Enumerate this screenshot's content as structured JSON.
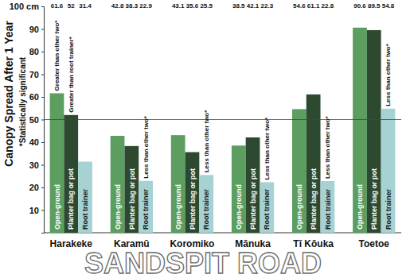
{
  "chart_data": {
    "type": "bar",
    "title": "Canopy Spread After 1 Year",
    "subtitle": "*Statistically significant",
    "caption": "SANDSPIT ROAD",
    "categories": [
      "Harakeke",
      "Karamū",
      "Koromiko",
      "Mānuka",
      "Tī Kōuka",
      "Toetoe"
    ],
    "series": [
      {
        "name": "Open-ground",
        "color": "#5c9e60",
        "values": [
          61.6,
          42.8,
          43.1,
          38.5,
          54.6,
          90.6
        ]
      },
      {
        "name": "Planter bag or pot",
        "color": "#2d4a30",
        "values": [
          52,
          38.3,
          35.6,
          42.1,
          61.1,
          89.5
        ]
      },
      {
        "name": "Root trainer",
        "color": "#a6d2d3",
        "values": [
          31.4,
          22.9,
          25.5,
          22.3,
          22.8,
          54.8
        ]
      }
    ],
    "ylim": [
      0,
      100
    ],
    "yticks": [
      10,
      20,
      30,
      40,
      50,
      60,
      70,
      80,
      90,
      {
        "value": 100,
        "label": "100 cm"
      }
    ],
    "grid": false,
    "reference_line": 50,
    "data_labels": true,
    "annotations": [
      {
        "text": "Greater than other two*",
        "category": "Harakeke",
        "series": "Open-ground"
      },
      {
        "text": "Greater than root trainer*",
        "category": "Harakeke",
        "series": "Planter bag or pot"
      },
      {
        "text": "Less than other two*",
        "category": "Karamū",
        "series": "Root trainer"
      },
      {
        "text": "Less than other two*",
        "category": "Koromiko",
        "series": "Root trainer"
      },
      {
        "text": "Less than other two*",
        "category": "Mānuka",
        "series": "Root trainer"
      },
      {
        "text": "Less than other two*",
        "category": "Tī Kōuka",
        "series": "Root trainer"
      },
      {
        "text": "Less than other two*",
        "category": "Toetoe",
        "series": "Root trainer"
      }
    ]
  }
}
